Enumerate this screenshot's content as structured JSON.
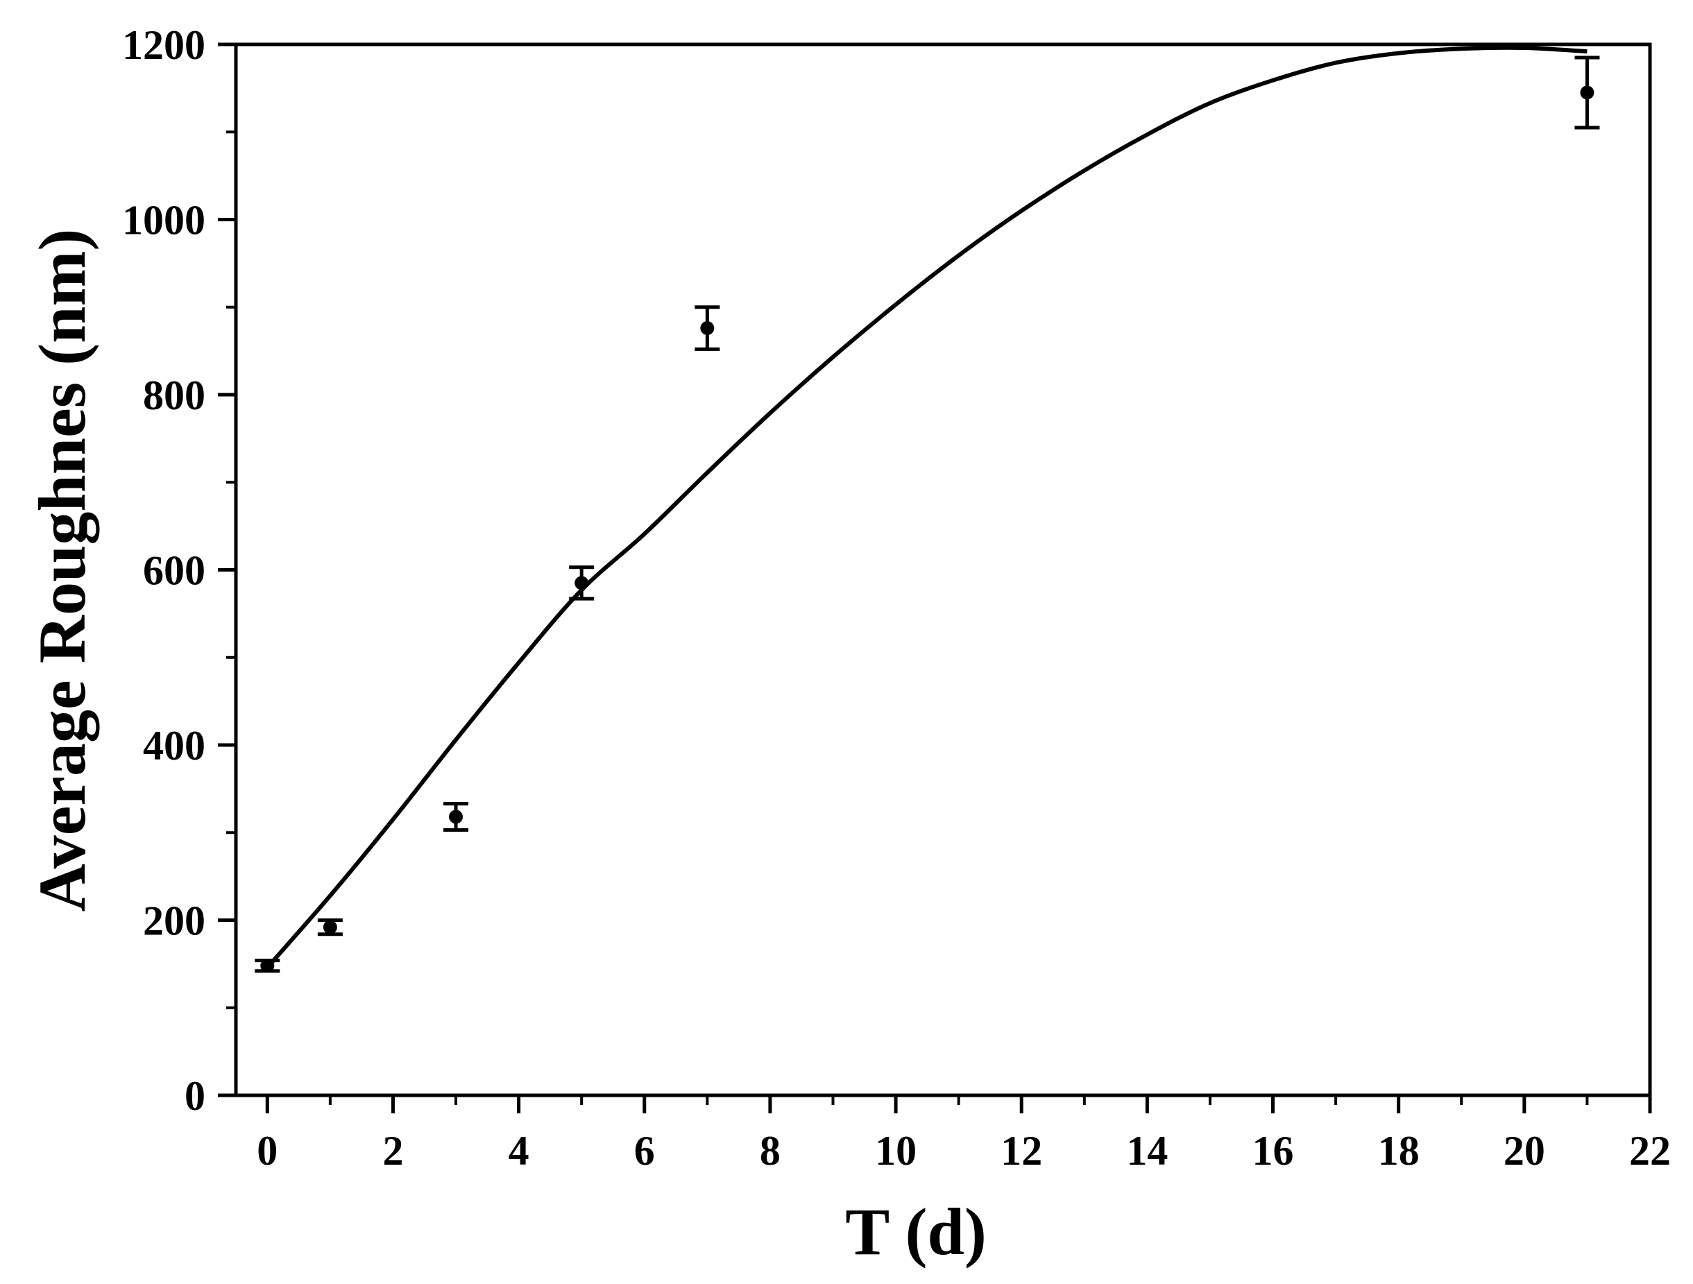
{
  "chart_data": {
    "type": "scatter",
    "xlabel": "T (d)",
    "ylabel": "Average Roughnes (nm)",
    "xlim": [
      -0.5,
      22
    ],
    "ylim": [
      0,
      1200
    ],
    "x_ticks": [
      0,
      2,
      4,
      6,
      8,
      10,
      12,
      14,
      16,
      18,
      20,
      22
    ],
    "y_ticks": [
      0,
      200,
      400,
      600,
      800,
      1000,
      1200
    ],
    "x_minor_step": 1,
    "y_minor_step": 100,
    "grid": false,
    "legend": "none",
    "colors": {
      "ink": "#000000",
      "background": "#ffffff"
    },
    "series": [
      {
        "kind": "points_with_error_bars",
        "x": [
          0,
          1,
          3,
          5,
          7,
          21
        ],
        "y": [
          148,
          192,
          318,
          585,
          876,
          1145
        ],
        "error": [
          6,
          8,
          15,
          18,
          24,
          40
        ]
      },
      {
        "kind": "fitted_curve",
        "x": [
          0,
          1,
          2,
          3,
          4,
          5,
          6,
          7,
          8,
          9,
          10,
          11,
          12,
          13,
          14,
          15,
          16,
          17,
          18,
          19,
          20,
          21
        ],
        "y": [
          146,
          228,
          315,
          406,
          494,
          577,
          641,
          711,
          779,
          843,
          903,
          959,
          1010,
          1056,
          1097,
          1133,
          1159,
          1179,
          1190,
          1195,
          1196,
          1192
        ]
      }
    ]
  }
}
